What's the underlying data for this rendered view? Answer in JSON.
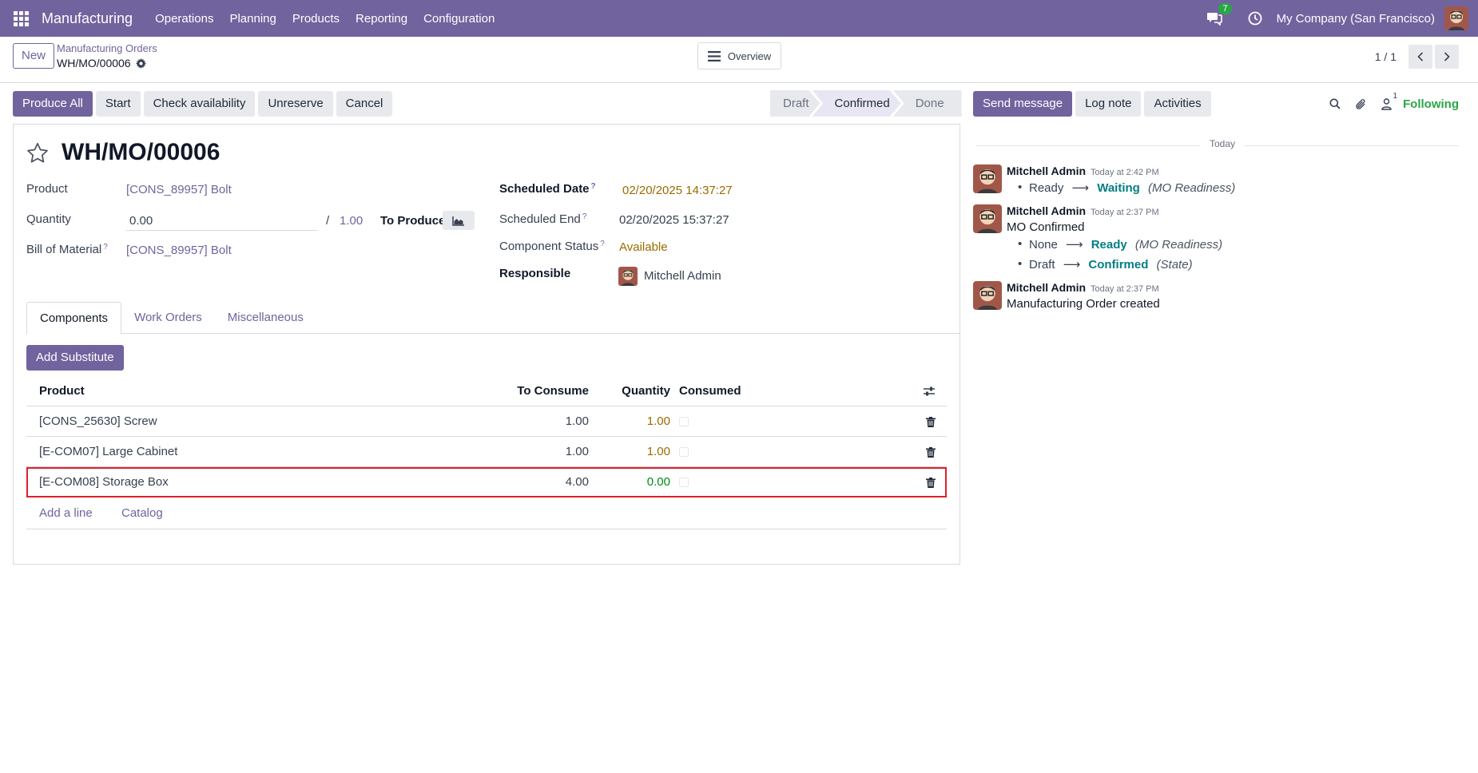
{
  "navbar": {
    "app_name": "Manufacturing",
    "menu": [
      "Operations",
      "Planning",
      "Products",
      "Reporting",
      "Configuration"
    ],
    "messages_badge": "7",
    "company": "My Company (San Francisco)"
  },
  "control_panel": {
    "new_label": "New",
    "breadcrumb_parent": "Manufacturing Orders",
    "breadcrumb_current": "WH/MO/00006",
    "overview_label": "Overview",
    "pager": "1 / 1"
  },
  "actions": {
    "produce_all": "Produce All",
    "start": "Start",
    "check_availability": "Check availability",
    "unreserve": "Unreserve",
    "cancel": "Cancel"
  },
  "statusbar": {
    "stages": [
      "Draft",
      "Confirmed",
      "Done"
    ],
    "active": "Confirmed"
  },
  "form": {
    "title": "WH/MO/00006",
    "product_label": "Product",
    "product_value": "[CONS_89957] Bolt",
    "quantity_label": "Quantity",
    "quantity_value": "0.00",
    "quantity_sep": "/",
    "quantity_to_produce": "1.00",
    "to_produce_label": "To Produce",
    "bom_label": "Bill of Material",
    "bom_value": "[CONS_89957] Bolt",
    "help_mark": "?",
    "scheduled_date_label": "Scheduled Date",
    "scheduled_date_value": "02/20/2025 14:37:27",
    "scheduled_end_label": "Scheduled End",
    "scheduled_end_value": "02/20/2025 15:37:27",
    "component_status_label": "Component Status",
    "component_status_value": "Available",
    "responsible_label": "Responsible",
    "responsible_value": "Mitchell Admin"
  },
  "tabs": [
    "Components",
    "Work Orders",
    "Miscellaneous"
  ],
  "components": {
    "add_substitute": "Add Substitute",
    "headers": {
      "product": "Product",
      "to_consume": "To Consume",
      "quantity": "Quantity",
      "consumed": "Consumed"
    },
    "rows": [
      {
        "product": "[CONS_25630] Screw",
        "to_consume": "1.00",
        "quantity": "1.00"
      },
      {
        "product": "[E-COM07] Large Cabinet",
        "to_consume": "1.00",
        "quantity": "1.00"
      },
      {
        "product": "[E-COM08] Storage Box",
        "to_consume": "4.00",
        "quantity": "0.00"
      }
    ],
    "add_line": "Add a line",
    "catalog": "Catalog"
  },
  "chatter": {
    "send_message": "Send message",
    "log_note": "Log note",
    "activities": "Activities",
    "followers_count": "1",
    "following": "Following",
    "today": "Today",
    "messages": [
      {
        "author": "Mitchell Admin",
        "date": "Today at 2:42 PM",
        "tracking": [
          {
            "old": "Ready",
            "new": "Waiting",
            "field": "(MO Readiness)"
          }
        ]
      },
      {
        "author": "Mitchell Admin",
        "date": "Today at 2:37 PM",
        "body": "MO Confirmed",
        "tracking": [
          {
            "old": "None",
            "new": "Ready",
            "field": "(MO Readiness)"
          },
          {
            "old": "Draft",
            "new": "Confirmed",
            "field": "(State)"
          }
        ]
      },
      {
        "author": "Mitchell Admin",
        "date": "Today at 2:37 PM",
        "body": "Manufacturing Order created"
      }
    ]
  },
  "colors": {
    "brand": "#71639e",
    "success": "#28a745",
    "warning": "#9a6b00",
    "highlight": "#e0202a"
  }
}
